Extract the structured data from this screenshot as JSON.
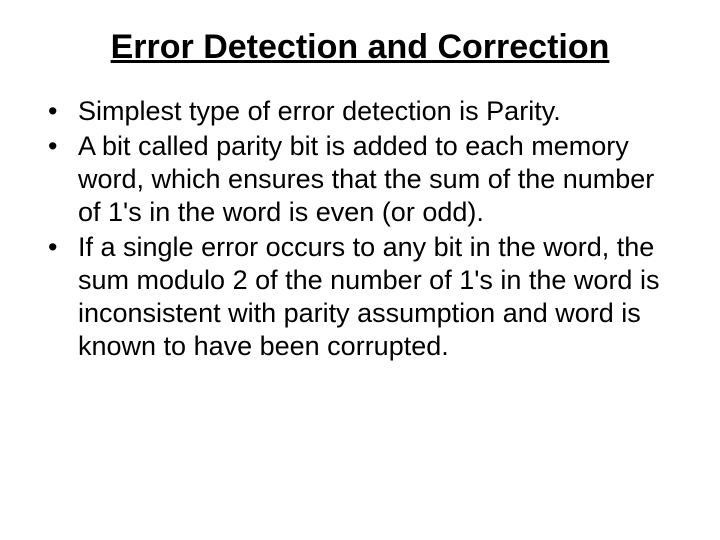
{
  "slide": {
    "title": "Error Detection and Correction",
    "bullets": [
      "Simplest type of error detection is Parity.",
      "A bit called parity bit is added to each memory word, which ensures that the sum of the number of 1's in the word is even (or odd).",
      "If a single error occurs to any bit in the word, the sum modulo 2 of the number of 1's in the word is inconsistent with parity assumption and word is known to have been corrupted."
    ],
    "colors": {
      "background": "#ffffff",
      "text": "#000000"
    },
    "typography": {
      "title_fontsize": 34,
      "title_weight": "bold",
      "title_underline": true,
      "body_fontsize": 27,
      "font_family": "Arial"
    }
  }
}
